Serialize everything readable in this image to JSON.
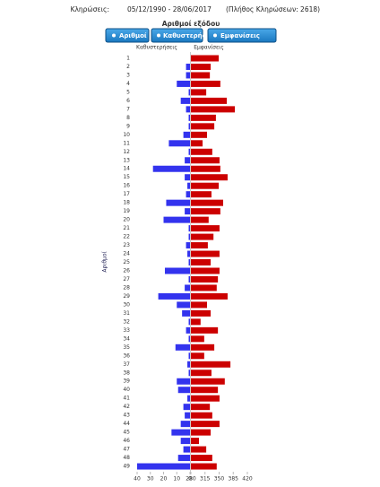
{
  "header": {
    "label": "Κληρώσεις:",
    "period": "05/12/1990 - 28/06/2017",
    "count": "(Πλήθος Κληρώσεων: 2618)"
  },
  "buttons": [
    "Αριθμοί",
    "Καθυστερήσεις",
    "Εμφανίσεις"
  ],
  "chart_data": {
    "type": "bar",
    "title": "Αριθμοί εξόδου",
    "y_label": "Αριθμοί",
    "categories": [
      "1",
      "2",
      "3",
      "4",
      "5",
      "6",
      "7",
      "8",
      "9",
      "10",
      "11",
      "12",
      "13",
      "14",
      "15",
      "16",
      "17",
      "18",
      "19",
      "20",
      "21",
      "22",
      "23",
      "24",
      "25",
      "26",
      "27",
      "28",
      "29",
      "30",
      "31",
      "32",
      "33",
      "34",
      "35",
      "36",
      "37",
      "38",
      "39",
      "40",
      "41",
      "42",
      "43",
      "44",
      "45",
      "46",
      "47",
      "48",
      "49"
    ],
    "series": [
      {
        "name": "Καθυστερήσεις",
        "color": "#3333ee",
        "direction": "left",
        "xlim": [
          0,
          40
        ],
        "xticks": [
          40,
          30,
          20,
          10,
          0
        ],
        "values": [
          0,
          3,
          3,
          10,
          1,
          7,
          3,
          1,
          1,
          5,
          16,
          1,
          4,
          28,
          4,
          2,
          3,
          18,
          4,
          20,
          1,
          1,
          3,
          2,
          1,
          19,
          1,
          4,
          24,
          10,
          6,
          1,
          3,
          1,
          11,
          1,
          2,
          1,
          10,
          9,
          2,
          5,
          4,
          7,
          14,
          7,
          5,
          9,
          40
        ]
      },
      {
        "name": "Εμφανίσεις",
        "color": "#cc0000",
        "direction": "right",
        "xlim": [
          280,
          420
        ],
        "xticks": [
          280,
          315,
          350,
          385,
          420
        ],
        "values": [
          349,
          329,
          327,
          353,
          318,
          369,
          389,
          342,
          338,
          320,
          309,
          333,
          351,
          353,
          371,
          349,
          331,
          360,
          353,
          324,
          351,
          336,
          322,
          351,
          329,
          351,
          347,
          344,
          371,
          320,
          329,
          304,
          347,
          313,
          338,
          313,
          378,
          331,
          364,
          347,
          351,
          327,
          333,
          351,
          329,
          300,
          318,
          333,
          344
        ]
      }
    ]
  }
}
